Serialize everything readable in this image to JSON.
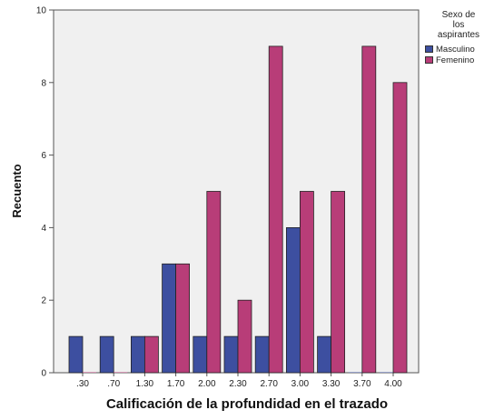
{
  "chart_data": {
    "type": "bar",
    "categories": [
      ".30",
      ".70",
      "1.30",
      "1.70",
      "2.00",
      "2.30",
      "2.70",
      "3.00",
      "3.30",
      "3.70",
      "4.00"
    ],
    "series": [
      {
        "name": "Masculino",
        "values": [
          1,
          1,
          1,
          3,
          1,
          1,
          1,
          4,
          1,
          0,
          0
        ],
        "color": "#3d4fa0"
      },
      {
        "name": "Femenino",
        "values": [
          0,
          0,
          1,
          3,
          5,
          2,
          9,
          5,
          5,
          9,
          8
        ],
        "color": "#b83d78"
      }
    ],
    "xlabel": "Calificación de la profundidad en el trazado",
    "ylabel": "Recuento",
    "ylim": [
      0,
      10
    ],
    "yticks": [
      0,
      2,
      4,
      6,
      8,
      10
    ],
    "legend": {
      "title_lines": [
        "Sexo de",
        "los",
        "aspirantes"
      ],
      "position": "top-right"
    },
    "grid": false,
    "plot_background": "#f0f0f0"
  }
}
